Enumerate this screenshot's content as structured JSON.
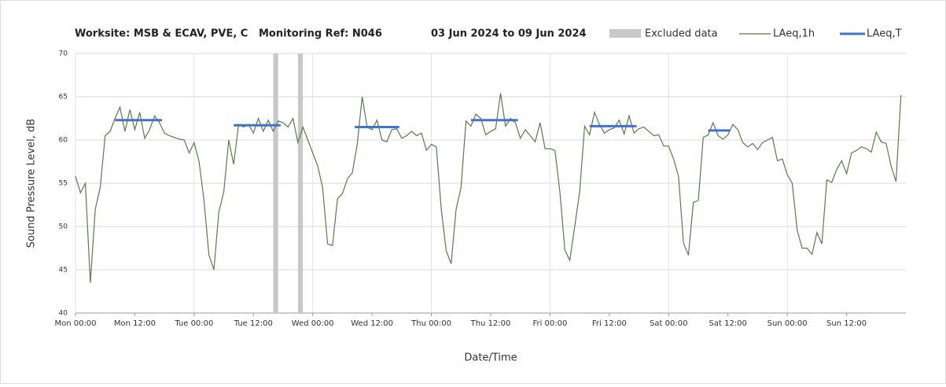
{
  "chart_data": {
    "type": "line",
    "title": [
      "Worksite: MSB & ECAV, PVE, C",
      "Monitoring Ref: N046",
      "03 Jun 2024 to 09 Jun 2024"
    ],
    "xlabel": "Date/Time",
    "ylabel": "Sound Pressure Level, dB",
    "xlim": [
      0,
      168
    ],
    "ylim": [
      40,
      70
    ],
    "yticks": [
      40,
      45,
      50,
      55,
      60,
      65,
      70
    ],
    "xticks": [
      {
        "value": 0,
        "label": "Mon 00:00"
      },
      {
        "value": 12,
        "label": "Mon 12:00"
      },
      {
        "value": 24,
        "label": "Tue 00:00"
      },
      {
        "value": 36,
        "label": "Tue 12:00"
      },
      {
        "value": 48,
        "label": "Wed 00:00"
      },
      {
        "value": 60,
        "label": "Wed 12:00"
      },
      {
        "value": 72,
        "label": "Thu 00:00"
      },
      {
        "value": 84,
        "label": "Thu 12:00"
      },
      {
        "value": 96,
        "label": "Fri 00:00"
      },
      {
        "value": 108,
        "label": "Fri 12:00"
      },
      {
        "value": 120,
        "label": "Sat 00:00"
      },
      {
        "value": 132,
        "label": "Sat 12:00"
      },
      {
        "value": 144,
        "label": "Sun 00:00"
      },
      {
        "value": 156,
        "label": "Sun 12:00"
      }
    ],
    "grid": true,
    "excluded": {
      "name": "Excluded data",
      "color": "#c8c8c8",
      "ranges": [
        [
          40,
          41
        ],
        [
          45,
          46
        ]
      ]
    },
    "series": [
      {
        "name": "LAeq,1h",
        "color": "#5b7b4b",
        "x": [
          0,
          1,
          2,
          3,
          4,
          5,
          6,
          7,
          8,
          9,
          10,
          11,
          12,
          13,
          14,
          15,
          16,
          17,
          18,
          19,
          20,
          21,
          22,
          23,
          24,
          25,
          26,
          27,
          28,
          29,
          30,
          31,
          32,
          33,
          34,
          35,
          36,
          37,
          38,
          39,
          40,
          41,
          42,
          43,
          44,
          45,
          46,
          47,
          48,
          49,
          50,
          51,
          52,
          53,
          54,
          55,
          56,
          57,
          58,
          59,
          60,
          61,
          62,
          63,
          64,
          65,
          66,
          67,
          68,
          69,
          70,
          71,
          72,
          73,
          74,
          75,
          76,
          77,
          78,
          79,
          80,
          81,
          82,
          83,
          84,
          85,
          86,
          87,
          88,
          89,
          90,
          91,
          92,
          93,
          94,
          95,
          96,
          97,
          98,
          99,
          100,
          101,
          102,
          103,
          104,
          105,
          106,
          107,
          108,
          109,
          110,
          111,
          112,
          113,
          114,
          115,
          116,
          117,
          118,
          119,
          120,
          121,
          122,
          123,
          124,
          125,
          126,
          127,
          128,
          129,
          130,
          131,
          132,
          133,
          134,
          135,
          136,
          137,
          138,
          139,
          140,
          141,
          142,
          143,
          144,
          145,
          146,
          147,
          148,
          149,
          150,
          151,
          152,
          153,
          154,
          155,
          156,
          157,
          158,
          159,
          160,
          161,
          162,
          163,
          164,
          165,
          166,
          167
        ],
        "values": [
          55.8,
          53.9,
          55,
          43.5,
          52,
          54.5,
          60.5,
          61,
          62.5,
          63.8,
          61,
          63.5,
          61.2,
          63.2,
          60.2,
          61.2,
          62.8,
          62,
          60.8,
          60.5,
          60.3,
          60.1,
          60,
          58.5,
          59.7,
          57.5,
          53,
          46.7,
          45,
          51.7,
          54,
          60,
          57.2,
          61.8,
          61.5,
          61.8,
          60.8,
          62.5,
          61,
          62.3,
          61,
          62.2,
          62,
          61.5,
          62.5,
          59.7,
          61.5,
          60,
          58.5,
          57,
          54.5,
          48,
          47.8,
          53.2,
          53.8,
          55.5,
          56.2,
          59.5,
          65,
          61.5,
          61.2,
          62.3,
          60,
          59.8,
          61.2,
          61.3,
          60.2,
          60.5,
          61,
          60.5,
          60.8,
          58.8,
          59.5,
          59.2,
          52,
          47.2,
          45.7,
          52,
          54.5,
          62.2,
          61.6,
          63,
          62.5,
          60.6,
          61,
          61.3,
          65.4,
          61.6,
          62.5,
          62,
          60.2,
          61.2,
          60.5,
          59.8,
          62,
          59,
          59,
          58.8,
          54,
          47.3,
          46.1,
          50,
          54,
          61.6,
          60.6,
          63.2,
          61.8,
          60.8,
          61.2,
          61.4,
          62.3,
          60.7,
          62.8,
          60.8,
          61.3,
          61.5,
          61,
          60.5,
          60.6,
          59.3,
          59.3,
          57.8,
          55.8,
          48.1,
          46.7,
          52.8,
          53,
          60.3,
          60.6,
          62,
          60.5,
          60.1,
          60.6,
          61.8,
          61.2,
          59.7,
          59.2,
          59.6,
          58.9,
          59.7,
          60,
          60.3,
          57.6,
          57.8,
          56,
          55,
          49.6,
          47.5,
          47.5,
          46.8,
          49.3,
          48,
          55.4,
          55.1,
          56.6,
          57.6,
          56.1,
          58.5,
          58.8,
          59.2,
          59,
          58.6,
          60.9,
          59.8,
          59.6,
          57,
          55.2,
          65.2
        ]
      }
    ],
    "leq_t": {
      "name": "LAeq,T",
      "color": "#4472c4",
      "segments": [
        {
          "start": 8,
          "end": 17.5,
          "value": 62.3
        },
        {
          "start": 32,
          "end": 41.5,
          "value": 61.7
        },
        {
          "start": 56.5,
          "end": 65.5,
          "value": 61.5
        },
        {
          "start": 80,
          "end": 89.5,
          "value": 62.3
        },
        {
          "start": 104,
          "end": 113.5,
          "value": 61.6
        },
        {
          "start": 128,
          "end": 132.5,
          "value": 61.1
        }
      ]
    }
  }
}
